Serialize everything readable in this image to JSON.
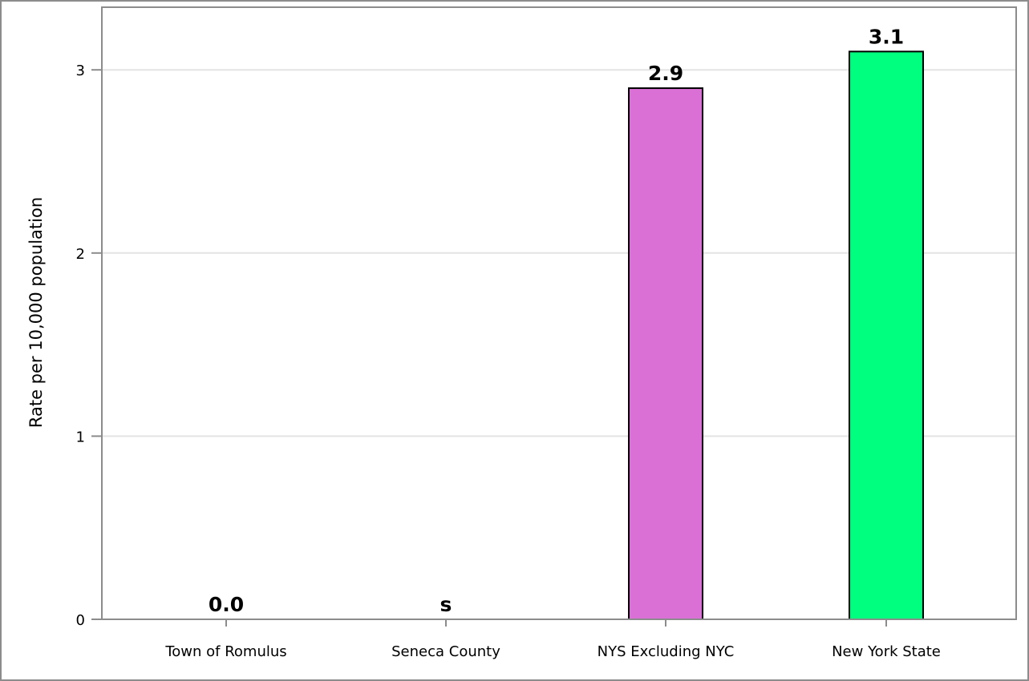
{
  "chart_data": {
    "type": "bar",
    "title": "",
    "xlabel": "",
    "ylabel": "Rate per 10,000 population",
    "ylim": [
      0,
      3.3
    ],
    "yticks": [
      0,
      1,
      2,
      3
    ],
    "grid": true,
    "categories": [
      "Town of Romulus",
      "Seneca County",
      "NYS Excluding NYC",
      "New York State"
    ],
    "values": [
      0.0,
      null,
      2.9,
      3.1
    ],
    "data_labels": [
      "0.0",
      "s",
      "2.9",
      "3.1"
    ],
    "colors": [
      "#DA70D6",
      "#DA70D6",
      "#DA70D6",
      "#00FF7F"
    ]
  }
}
